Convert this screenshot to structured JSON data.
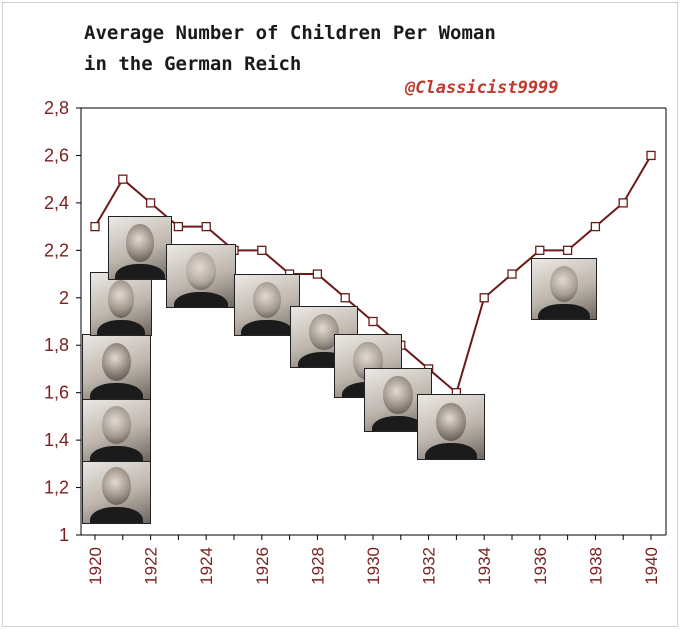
{
  "header": {
    "title_line1": "Average Number of Children Per Woman",
    "title_line2": "in the German Reich",
    "credit": "@Classicist9999"
  },
  "colors": {
    "line": "#6b1a1a",
    "marker_fill": "#ffffff",
    "axis": "#000000",
    "tick_text": "#7a1f1f",
    "credit": "#c0392b"
  },
  "chart_data": {
    "type": "line",
    "title": "Average Number of Children Per Woman in the German Reich",
    "xlabel": "",
    "ylabel": "",
    "x": [
      1920,
      1921,
      1922,
      1923,
      1924,
      1925,
      1926,
      1927,
      1928,
      1929,
      1930,
      1931,
      1932,
      1933,
      1934,
      1935,
      1936,
      1937,
      1938,
      1939,
      1940
    ],
    "series": [
      {
        "values": [
          2.3,
          2.5,
          2.4,
          2.3,
          2.3,
          2.2,
          2.2,
          2.1,
          2.1,
          2.0,
          1.9,
          1.8,
          1.7,
          1.6,
          2.0,
          2.1,
          2.2,
          2.2,
          2.3,
          2.4,
          2.6
        ]
      }
    ],
    "ylim": [
      1,
      2.8
    ],
    "xlim": [
      1920,
      1940
    ],
    "y_ticks": [
      "1",
      "1,2",
      "1,4",
      "1,6",
      "1,8",
      "2",
      "2,2",
      "2,4",
      "2,6",
      "2,8"
    ],
    "x_ticks": [
      "1920",
      "1922",
      "1924",
      "1926",
      "1928",
      "1930",
      "1932",
      "1934",
      "1936",
      "1938",
      "1940"
    ],
    "grid": false,
    "legend": "none",
    "markers": "open-square"
  },
  "portraits": [
    {
      "name": "portrait-1",
      "tone": "#9b8f85"
    },
    {
      "name": "portrait-2",
      "tone": "#a39a92"
    },
    {
      "name": "portrait-3",
      "tone": "#8c8177"
    },
    {
      "name": "portrait-4",
      "tone": "#a0968b"
    },
    {
      "name": "portrait-5",
      "tone": "#958a80"
    },
    {
      "name": "portrait-6",
      "tone": "#b3aaa2"
    },
    {
      "name": "portrait-7",
      "tone": "#a59b91"
    },
    {
      "name": "portrait-8",
      "tone": "#9d9389"
    },
    {
      "name": "portrait-9",
      "tone": "#a79d94"
    },
    {
      "name": "portrait-10",
      "tone": "#988e85"
    },
    {
      "name": "portrait-11",
      "tone": "#8f857b"
    },
    {
      "name": "portrait-12",
      "tone": "#a69c92"
    },
    {
      "name": "portrait-13",
      "tone": "#b0a69c"
    }
  ]
}
